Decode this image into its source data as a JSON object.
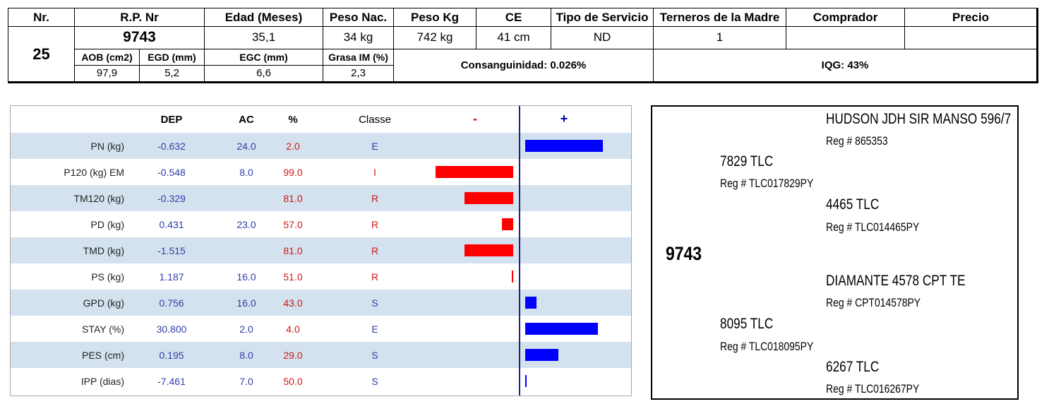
{
  "top": {
    "headers": {
      "nr": "Nr.",
      "rp": "R.P. Nr",
      "edad": "Edad (Meses)",
      "peso_nac": "Peso Nac.",
      "peso_kg": "Peso Kg",
      "ce": "CE",
      "tipo_servicio": "Tipo de Servicio",
      "terneros": "Terneros de la Madre",
      "comprador": "Comprador",
      "precio": "Precio"
    },
    "values": {
      "nr": "25",
      "rp": "9743",
      "edad": "35,1",
      "peso_nac": "34 kg",
      "peso_kg": "742 kg",
      "ce": "41 cm",
      "tipo_servicio": "ND",
      "terneros": "1",
      "comprador": "",
      "precio": ""
    },
    "sub_headers": {
      "aob": "AOB (cm2)",
      "egd": "EGD (mm)",
      "egc": "EGC (mm)",
      "grasa": "Grasa IM (%)"
    },
    "sub_values": {
      "aob": "97,9",
      "egd": "5,2",
      "egc": "6,6",
      "grasa": "2,3"
    },
    "consanguinidad": "Consanguinidad: 0.026%",
    "iqg": "IQG: 43%"
  },
  "chart_data": {
    "type": "bar",
    "headers": {
      "dep": "DEP",
      "ac": "AC",
      "pct": "%",
      "classe": "Classe",
      "minus": "-",
      "plus": "+"
    },
    "rows": [
      {
        "trait": "PN (kg)",
        "dep": "-0.632",
        "ac": "24.0",
        "pct": "2.0",
        "classe": "E",
        "bar": 0.98
      },
      {
        "trait": "P120 (kg) EM",
        "dep": "-0.548",
        "ac": "8.0",
        "pct": "99.0",
        "classe": "I",
        "bar": -0.98
      },
      {
        "trait": "TM120 (kg)",
        "dep": "-0.329",
        "ac": "",
        "pct": "81.0",
        "classe": "R",
        "bar": -0.62
      },
      {
        "trait": "PD (kg)",
        "dep": "0.431",
        "ac": "23.0",
        "pct": "57.0",
        "classe": "R",
        "bar": -0.14
      },
      {
        "trait": "TMD (kg)",
        "dep": "-1.515",
        "ac": "",
        "pct": "81.0",
        "classe": "R",
        "bar": -0.62
      },
      {
        "trait": "PS (kg)",
        "dep": "1.187",
        "ac": "16.0",
        "pct": "51.0",
        "classe": "R",
        "bar": -0.02
      },
      {
        "trait": "GPD (kg)",
        "dep": "0.756",
        "ac": "16.0",
        "pct": "43.0",
        "classe": "S",
        "bar": 0.14
      },
      {
        "trait": "STAY (%)",
        "dep": "30.800",
        "ac": "2.0",
        "pct": "4.0",
        "classe": "E",
        "bar": 0.92
      },
      {
        "trait": "PES (cm)",
        "dep": "0.195",
        "ac": "8.0",
        "pct": "29.0",
        "classe": "S",
        "bar": 0.42
      },
      {
        "trait": "IPP (dias)",
        "dep": "-7.461",
        "ac": "7.0",
        "pct": "50.0",
        "classe": "S",
        "bar": 0.02
      }
    ]
  },
  "pedigree": {
    "subject": "9743",
    "sire": {
      "name": "7829 TLC",
      "reg": "Reg # TLC017829PY"
    },
    "sire_sire": {
      "name": "HUDSON JDH SIR MANSO 596/7",
      "reg": "Reg # 865353"
    },
    "sire_dam": {
      "name": "4465 TLC",
      "reg": "Reg # TLC014465PY"
    },
    "dam": {
      "name": "8095 TLC",
      "reg": "Reg # TLC018095PY"
    },
    "dam_sire": {
      "name": "DIAMANTE 4578 CPT TE",
      "reg": "Reg # CPT014578PY"
    },
    "dam_dam": {
      "name": "6267 TLC",
      "reg": "Reg # TLC016267PY"
    }
  }
}
